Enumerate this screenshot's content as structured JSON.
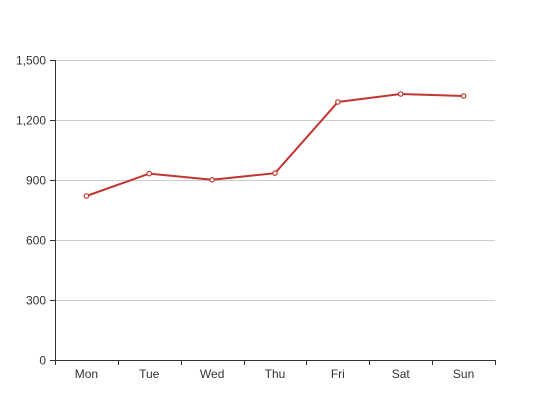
{
  "chart_data": {
    "type": "line",
    "categories": [
      "Mon",
      "Tue",
      "Wed",
      "Thu",
      "Fri",
      "Sat",
      "Sun"
    ],
    "series": [
      {
        "values": [
          820,
          932,
          901,
          934,
          1290,
          1330,
          1320
        ]
      }
    ],
    "ylim": [
      0,
      1500
    ],
    "yticks": [
      0,
      300,
      600,
      900,
      1200,
      1500
    ],
    "ytick_labels": [
      "0",
      "300",
      "600",
      "900",
      "1,200",
      "1,500"
    ],
    "grid": true,
    "colors": {
      "line": "#c23531"
    }
  }
}
